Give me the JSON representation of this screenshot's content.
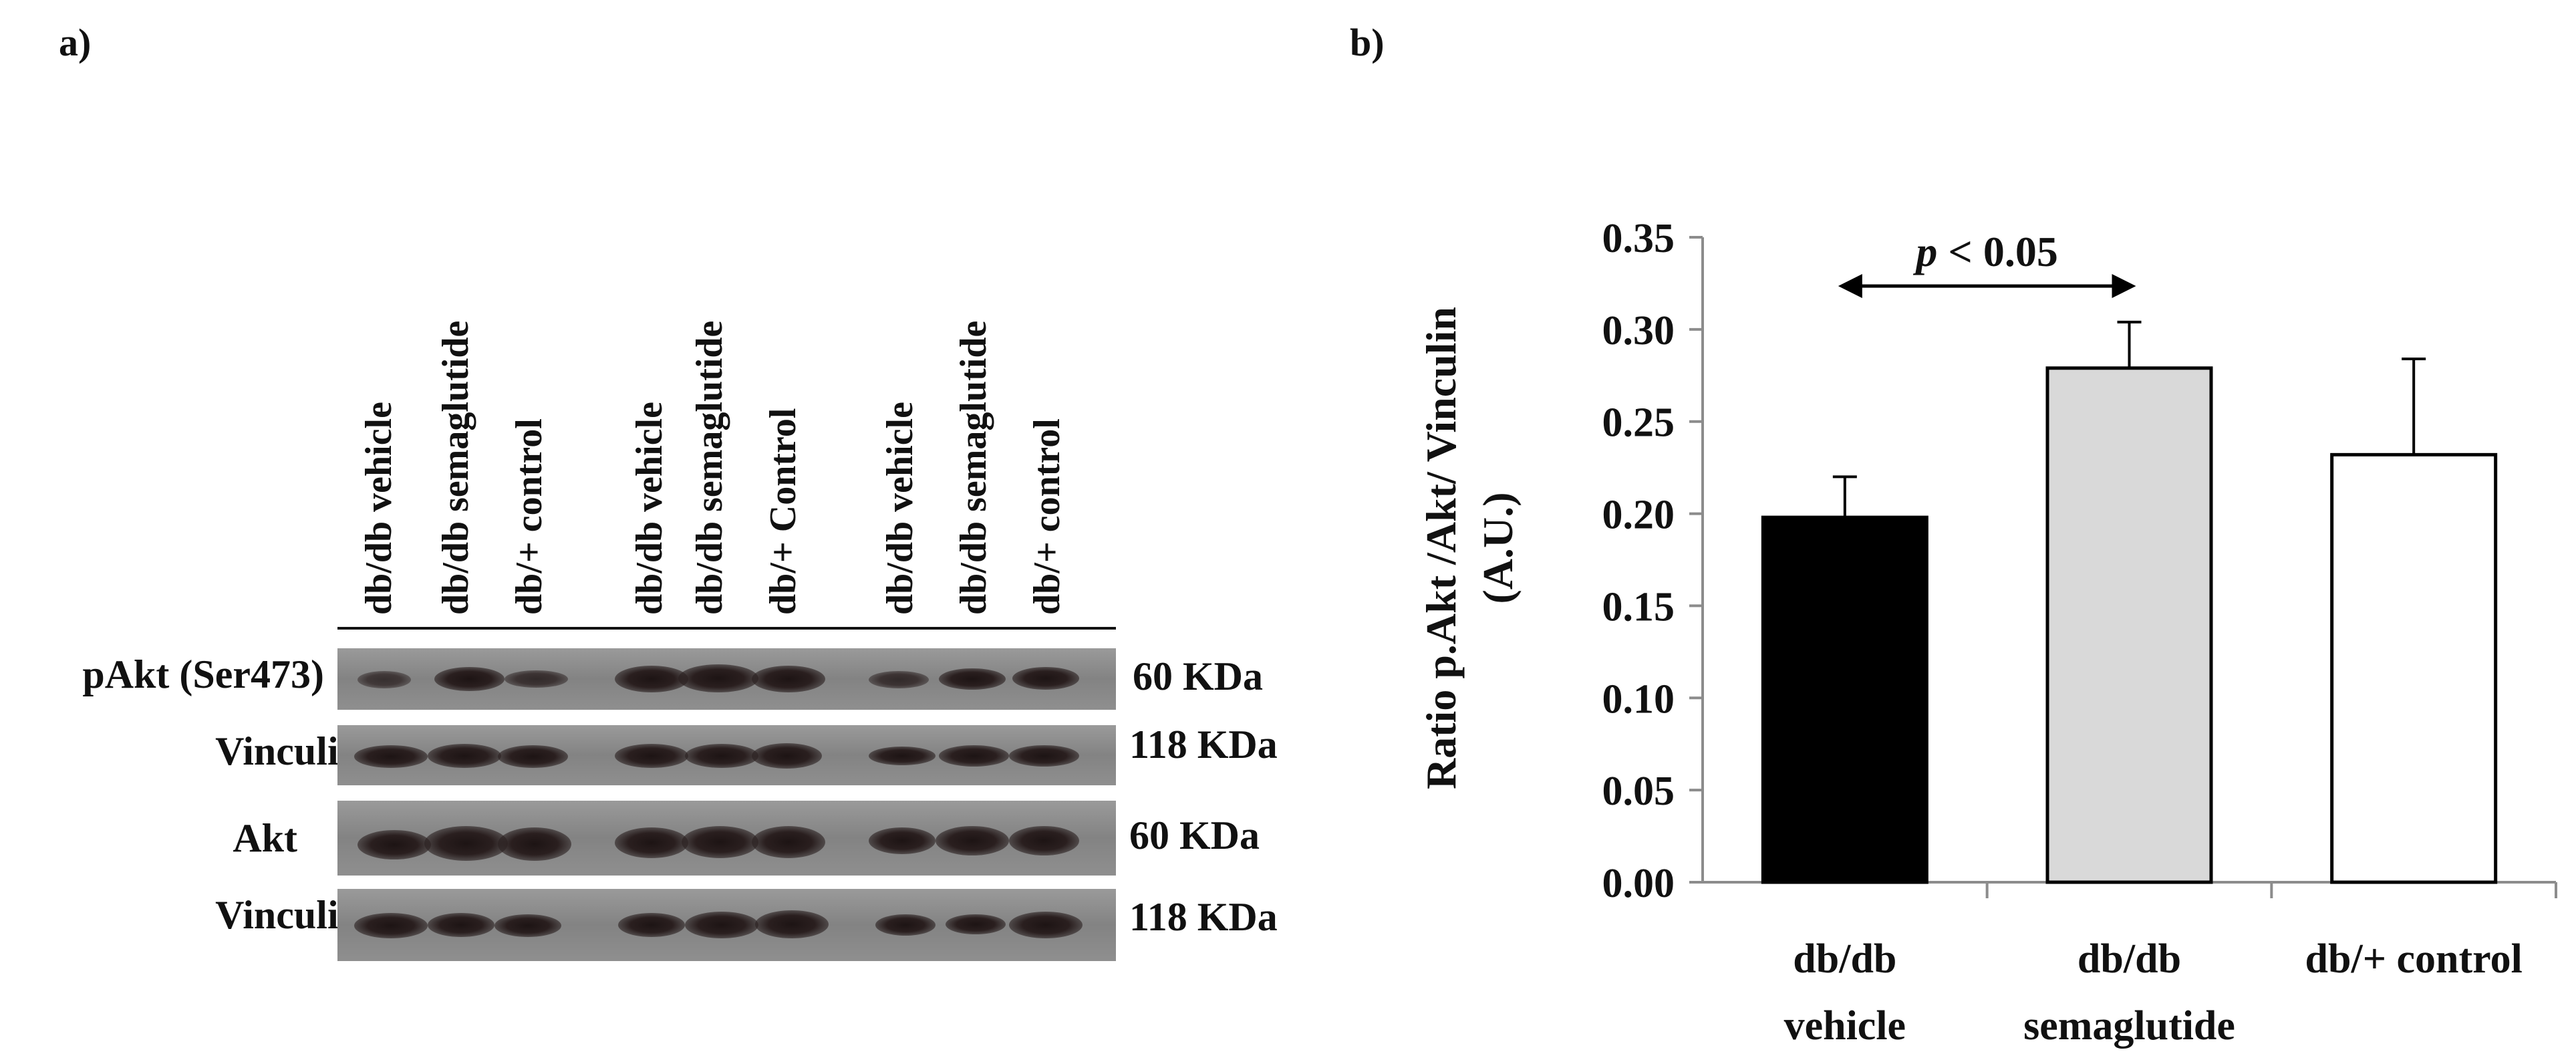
{
  "panels": {
    "a": "a)",
    "b": "b)"
  },
  "blot": {
    "lane_labels": [
      "db/db  vehicle",
      "db/db semaglutide",
      "db/+ control",
      "db/db  vehicle",
      "db/db semaglutide",
      "db/+ Control",
      "db/db  vehicle",
      "db/db semaglutide",
      "db/+ control"
    ],
    "rows": [
      {
        "name": "pAkt (Ser473)",
        "size": "60 KDa"
      },
      {
        "name": "Vinculin",
        "size": "118 KDa"
      },
      {
        "name": "Akt",
        "size": "60 KDa"
      },
      {
        "name": "Vinculin",
        "size": "118 KDa"
      }
    ]
  },
  "chart_data": {
    "type": "bar",
    "categories": [
      "db/db vehicle",
      "db/db semaglutide",
      "db/+ control"
    ],
    "category_lines": [
      [
        "db/db",
        "vehicle"
      ],
      [
        "db/db",
        "semaglutide"
      ],
      [
        "db/+ control"
      ]
    ],
    "values": [
      0.198,
      0.279,
      0.232
    ],
    "errors": [
      0.022,
      0.025,
      0.052
    ],
    "bar_colors": [
      "#000000",
      "#d9d9d9",
      "#ffffff"
    ],
    "ylabel_lines": [
      "Ratio p.Akt /Akt/ Vinculin",
      "(A.U.)"
    ],
    "ylim": [
      0,
      0.35
    ],
    "yticks": [
      "0.00",
      "0.05",
      "0.10",
      "0.15",
      "0.20",
      "0.25",
      "0.30",
      "0.35"
    ],
    "annotation": {
      "p_symbol": "p",
      "text": " < 0.05",
      "from": 0,
      "to": 1
    }
  }
}
